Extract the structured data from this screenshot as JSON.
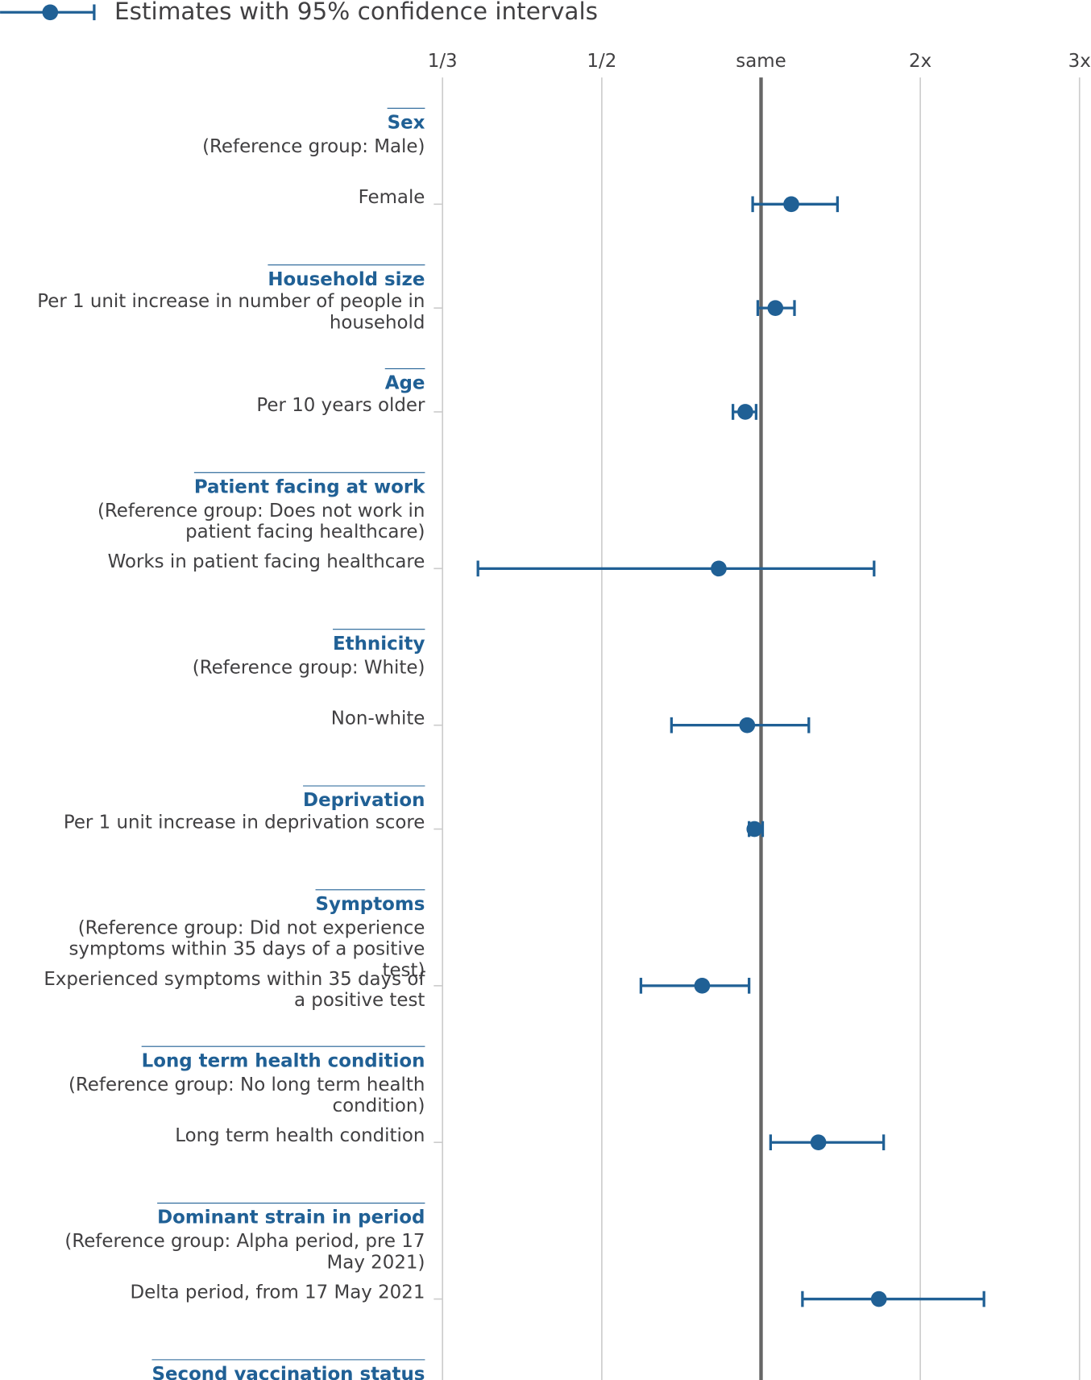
{
  "chart_data": {
    "type": "forest",
    "legend": "Estimates with 95% confidence intervals",
    "color": "#206095",
    "xscale": "symmetric-ratio",
    "xlim": [
      0.3333,
      3
    ],
    "xticks": [
      {
        "value": 0.3333,
        "label": "1/3"
      },
      {
        "value": 0.5,
        "label": "1/2"
      },
      {
        "value": 1,
        "label": "same"
      },
      {
        "value": 2,
        "label": "2x"
      },
      {
        "value": 3,
        "label": "3x"
      }
    ],
    "grid": true,
    "groups": [
      {
        "title": "Sex",
        "reference": "(Reference group: Male)",
        "rows": [
          {
            "label": "Female",
            "value": 1.19,
            "ci": [
              0.95,
              1.48
            ]
          }
        ]
      },
      {
        "title": "Household size",
        "rows": [
          {
            "label": "Per 1 unit increase in number of people in household",
            "value": 1.09,
            "ci": [
              0.98,
              1.21
            ]
          }
        ]
      },
      {
        "title": "Age",
        "rows": [
          {
            "label": "Per 10 years older",
            "value": 0.91,
            "ci": [
              0.85,
              0.97
            ]
          }
        ]
      },
      {
        "title": "Patient facing at work",
        "reference": "(Reference group: Does not work in patient facing healthcare)",
        "rows": [
          {
            "label": "Works in patient facing healthcare",
            "value": 0.79,
            "ci": [
              0.36,
              1.71
            ]
          }
        ]
      },
      {
        "title": "Ethnicity",
        "reference": "(Reference group: White)",
        "rows": [
          {
            "label": "Non-white",
            "value": 0.92,
            "ci": [
              0.64,
              1.3
            ]
          }
        ]
      },
      {
        "title": "Deprivation",
        "rows": [
          {
            "label": "Per 1 unit increase in deprivation score",
            "value": 0.96,
            "ci": [
              0.93,
              1.01
            ]
          }
        ]
      },
      {
        "title": "Symptoms",
        "reference": "(Reference group: Did not experience symptoms within 35 days of a positive test)",
        "rows": [
          {
            "label": "Experienced symptoms within 35 days of a positive test",
            "value": 0.73,
            "ci": [
              0.57,
              0.93
            ]
          }
        ]
      },
      {
        "title": "Long term health condition",
        "reference": "(Reference group: No long term health condition)",
        "rows": [
          {
            "label": "Long term health condition",
            "value": 1.36,
            "ci": [
              1.06,
              1.77
            ]
          }
        ]
      },
      {
        "title": "Dominant strain in period",
        "reference": "(Reference group: Alpha period, pre 17 May 2021)",
        "rows": [
          {
            "label": "Delta period, from 17 May 2021",
            "value": 1.74,
            "ci": [
              1.26,
              2.4
            ]
          }
        ]
      },
      {
        "title": "Second vaccination status"
      }
    ]
  }
}
